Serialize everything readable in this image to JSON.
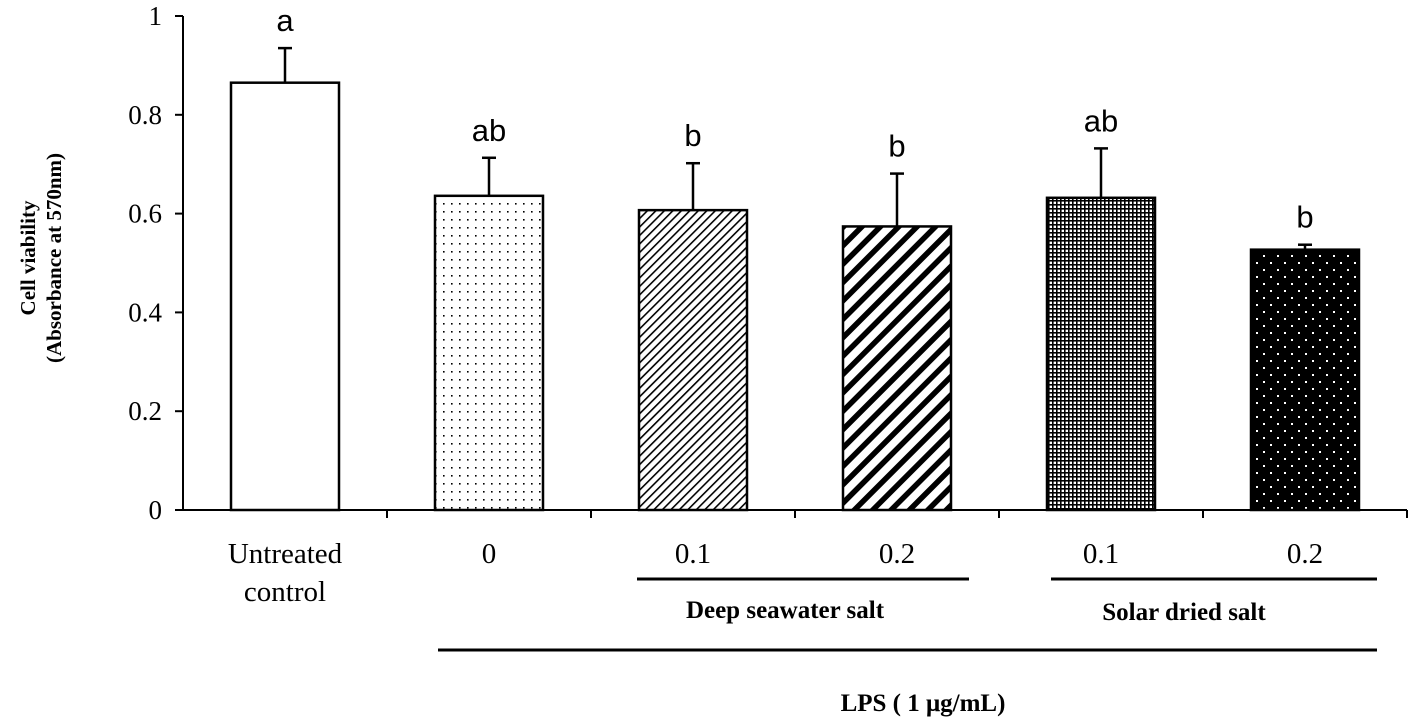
{
  "chart_data": {
    "type": "bar",
    "categories": [
      "Untreated control",
      "0",
      "0.1",
      "0.2",
      "0.1",
      "0.2"
    ],
    "category_lines": [
      [
        "Untreated",
        "control"
      ],
      [
        "0"
      ],
      [
        "0.1"
      ],
      [
        "0.2"
      ],
      [
        "0.1"
      ],
      [
        "0.2"
      ]
    ],
    "values": [
      0.865,
      0.636,
      0.607,
      0.574,
      0.632,
      0.527
    ],
    "errors": [
      0.07,
      0.077,
      0.095,
      0.107,
      0.1,
      0.01
    ],
    "significance": [
      "a",
      "ab",
      "b",
      "b",
      "ab",
      "b"
    ],
    "patterns": [
      "solid-white",
      "sparse-dots",
      "fine-diagonal",
      "bold-diagonal",
      "dense-crosshatch",
      "white-dots-on-black"
    ],
    "ylabel_lines": [
      "Cell viability",
      "(Absorbance at 570nm)"
    ],
    "xlabel": "",
    "ylim": [
      0,
      1
    ],
    "yticks": [
      0,
      0.2,
      0.4,
      0.6,
      0.8,
      1
    ],
    "ytick_labels": [
      "0",
      "0.2",
      "0.4",
      "0.6",
      "0.8",
      "1"
    ],
    "groups": [
      {
        "label": "Deep seawater salt",
        "from": 2,
        "to": 3
      },
      {
        "label": "Solar dried salt",
        "from": 4,
        "to": 5
      }
    ],
    "super_group": {
      "label": "LPS ( 1 μg/mL)",
      "from": 1,
      "to": 5
    },
    "grid": false,
    "legend": "none"
  }
}
